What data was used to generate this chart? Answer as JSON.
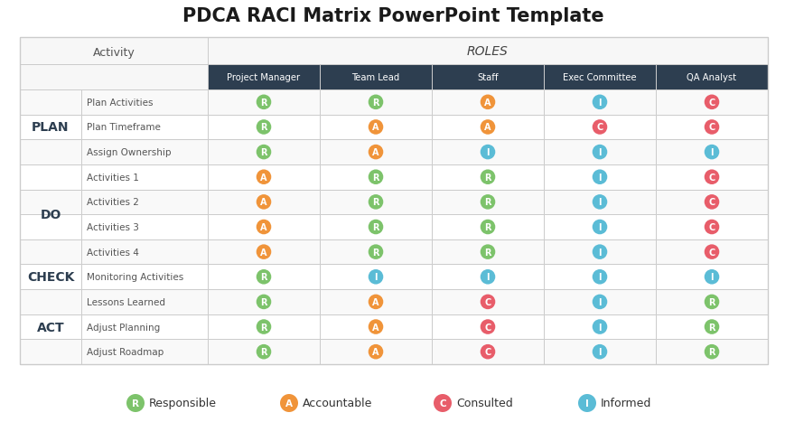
{
  "title": "PDCA RACI Matrix PowerPoint Template",
  "title_fontsize": 15,
  "background_color": "#ffffff",
  "header_bg_color": "#2d3e50",
  "header_text_color": "#ffffff",
  "border_color": "#cccccc",
  "phase_label_color": "#2d3e50",
  "activity_text_color": "#555555",
  "roles": [
    "Project Manager",
    "Team Lead",
    "Staff",
    "Exec Committee",
    "QA Analyst"
  ],
  "phases": [
    "PLAN",
    "DO",
    "CHECK",
    "ACT"
  ],
  "phase_rows": [
    3,
    4,
    1,
    3
  ],
  "rows": [
    {
      "phase": "PLAN",
      "activity": "Plan Activities",
      "values": [
        "R",
        "R",
        "A",
        "I",
        "C"
      ]
    },
    {
      "phase": "PLAN",
      "activity": "Plan Timeframe",
      "values": [
        "R",
        "A",
        "A",
        "C",
        "C"
      ]
    },
    {
      "phase": "PLAN",
      "activity": "Assign Ownership",
      "values": [
        "R",
        "A",
        "I",
        "I",
        "I"
      ]
    },
    {
      "phase": "DO",
      "activity": "Activities 1",
      "values": [
        "A",
        "R",
        "R",
        "I",
        "C"
      ]
    },
    {
      "phase": "DO",
      "activity": "Activities 2",
      "values": [
        "A",
        "R",
        "R",
        "I",
        "C"
      ]
    },
    {
      "phase": "DO",
      "activity": "Activities 3",
      "values": [
        "A",
        "R",
        "R",
        "I",
        "C"
      ]
    },
    {
      "phase": "DO",
      "activity": "Activities 4",
      "values": [
        "A",
        "R",
        "R",
        "I",
        "C"
      ]
    },
    {
      "phase": "CHECK",
      "activity": "Monitoring Activities",
      "values": [
        "R",
        "I",
        "I",
        "I",
        "I"
      ]
    },
    {
      "phase": "ACT",
      "activity": "Lessons Learned",
      "values": [
        "R",
        "A",
        "C",
        "I",
        "R"
      ]
    },
    {
      "phase": "ACT",
      "activity": "Adjust Planning",
      "values": [
        "R",
        "A",
        "C",
        "I",
        "R"
      ]
    },
    {
      "phase": "ACT",
      "activity": "Adjust Roadmap",
      "values": [
        "R",
        "A",
        "C",
        "I",
        "R"
      ]
    }
  ],
  "raci_colors": {
    "R": "#7dc36b",
    "A": "#f0943a",
    "C": "#e85d6a",
    "I": "#5bbcd6"
  },
  "legend_items": [
    {
      "label": "Responsible",
      "code": "R",
      "color": "#7dc36b"
    },
    {
      "label": "Accountable",
      "code": "A",
      "color": "#f0943a"
    },
    {
      "label": "Consulted",
      "code": "C",
      "color": "#e85d6a"
    },
    {
      "label": "Informed",
      "code": "I",
      "color": "#5bbcd6"
    }
  ]
}
